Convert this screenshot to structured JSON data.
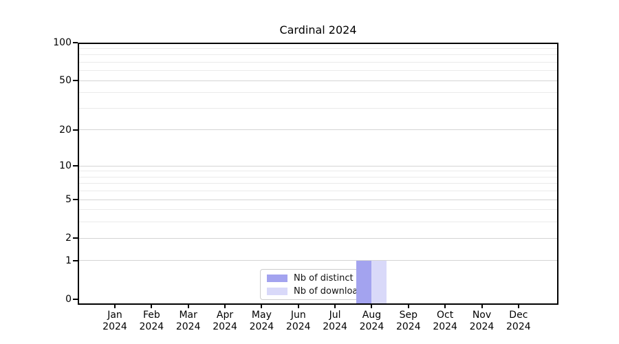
{
  "chart_data": {
    "type": "bar",
    "title": "Cardinal 2024",
    "x_axis": {
      "months": [
        "Jan",
        "Feb",
        "Mar",
        "Apr",
        "May",
        "Jun",
        "Jul",
        "Aug",
        "Sep",
        "Oct",
        "Nov",
        "Dec"
      ],
      "year": "2024"
    },
    "y_axis": {
      "scale": "log1p",
      "labeled_ticks": [
        0,
        1,
        2,
        5,
        10,
        20,
        50,
        100
      ],
      "minor_gridlines": [
        3,
        4,
        6,
        7,
        8,
        9,
        30,
        40,
        60,
        70,
        80,
        90
      ],
      "ymin": 0,
      "ymax": 100
    },
    "series": [
      {
        "name": "Nb of distinct IPs",
        "color": "#a3a3ef",
        "values": [
          0,
          0,
          0,
          0,
          0,
          0,
          0,
          1,
          0,
          0,
          0,
          0
        ]
      },
      {
        "name": "Nb of downloads",
        "color": "#d9d9f9",
        "values": [
          0,
          0,
          0,
          0,
          0,
          0,
          0,
          1,
          0,
          0,
          0,
          0
        ]
      }
    ],
    "legend": {
      "position": "inside-bottom-center"
    },
    "grid": {
      "major_color": "#d4d4d4",
      "minor_color": "#eaeaea",
      "grid_on": true
    },
    "axis_color": "#000000"
  }
}
